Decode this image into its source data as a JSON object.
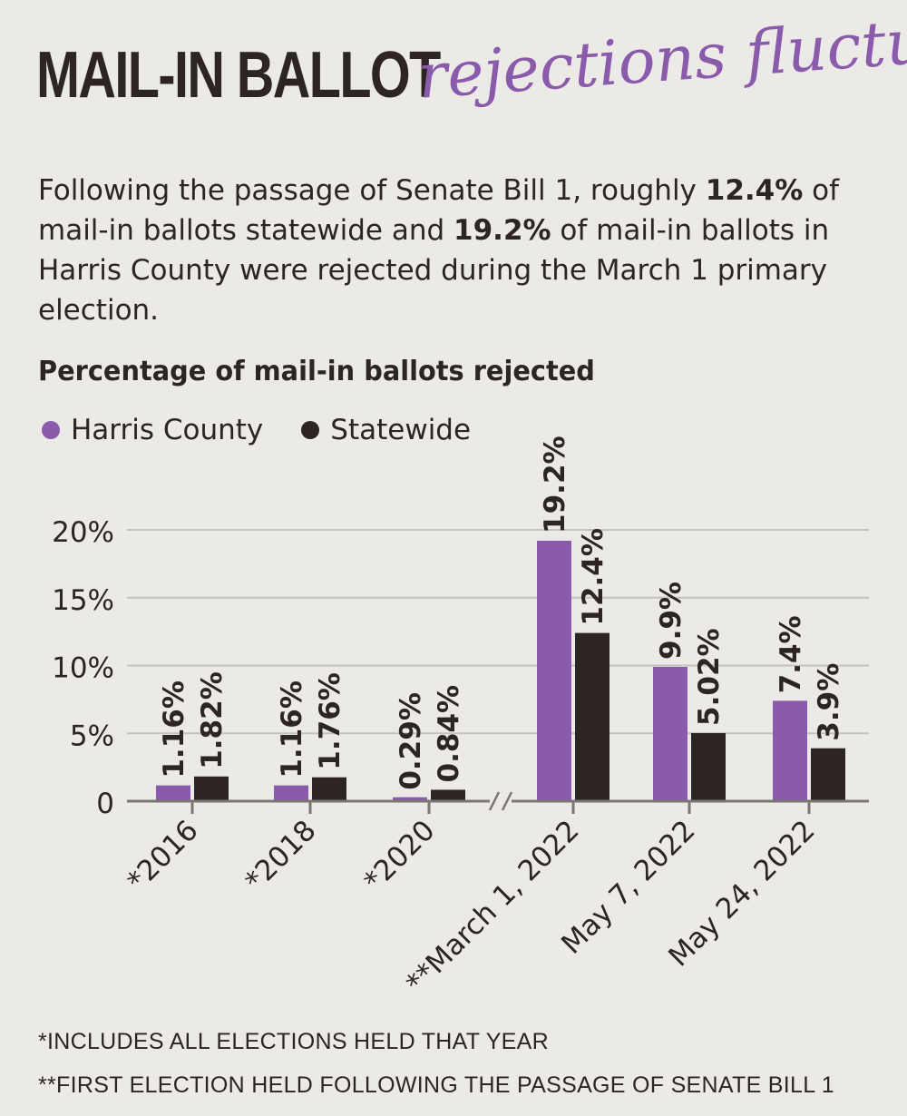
{
  "headline": {
    "main": "MAIL-IN BALLOT",
    "script": "rejections fluctuate"
  },
  "intro": {
    "t1": "Following the passage of Senate Bill 1, roughly ",
    "b1": "12.4%",
    "t2": " of mail-in ballots statewide and ",
    "b2": "19.2%",
    "t3": " of mail-in ballots in Harris County were rejected during the March 1 primary election."
  },
  "chart_data": {
    "type": "bar",
    "title": "Percentage of mail-in ballots rejected",
    "categories": [
      "*2016",
      "*2018",
      "*2020",
      "**March 1, 2022",
      "May 7, 2022",
      "May 24, 2022"
    ],
    "series": [
      {
        "name": "Harris County",
        "color": "#8a5aab",
        "values": [
          1.16,
          1.16,
          0.29,
          19.2,
          9.9,
          7.4
        ],
        "labels": [
          "1.16%",
          "1.16%",
          "0.29%",
          "19.2%",
          "9.9%",
          "7.4%"
        ]
      },
      {
        "name": "Statewide",
        "color": "#2d2521",
        "values": [
          1.82,
          1.76,
          0.84,
          12.4,
          5.02,
          3.9
        ],
        "labels": [
          "1.82%",
          "1.76%",
          "0.84%",
          "12.4%",
          "5.02%",
          "3.9%"
        ]
      }
    ],
    "yticks": [
      {
        "value": 0,
        "label": "0"
      },
      {
        "value": 5,
        "label": "5%"
      },
      {
        "value": 10,
        "label": "10%"
      },
      {
        "value": 15,
        "label": "15%"
      },
      {
        "value": 20,
        "label": "20%"
      }
    ],
    "ylim": [
      0,
      20
    ],
    "grid": true,
    "axis_break": "between *2020 and **March 1, 2022",
    "legend_placement": "top-left",
    "footnotes": [
      "*INCLUDES ALL ELECTIONS HELD THAT YEAR",
      "**FIRST ELECTION HELD FOLLOWING THE PASSAGE OF SENATE BILL 1"
    ]
  }
}
